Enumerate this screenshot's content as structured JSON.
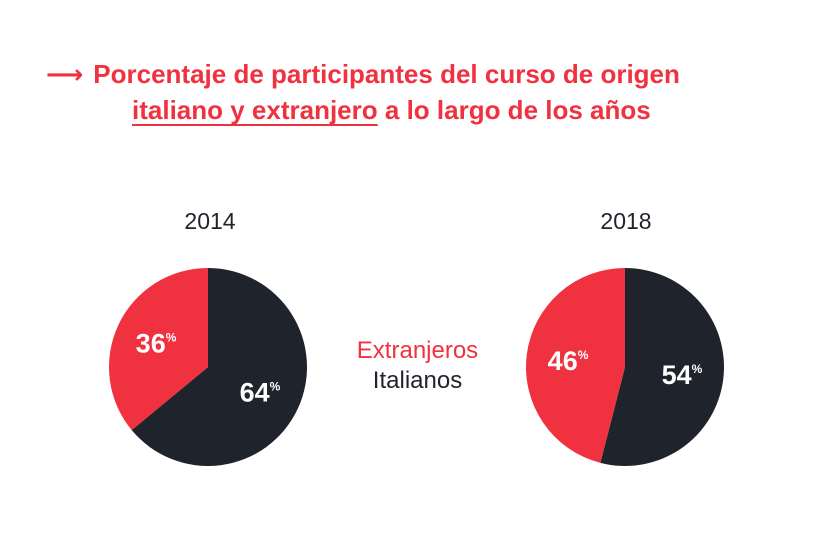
{
  "title": {
    "arrow": "⟶",
    "line1": "Porcentaje de participantes del curso de origen",
    "line2_underlined": "italiano y extranjero",
    "line2_rest": " a lo largo de los años"
  },
  "colors": {
    "extranjeros": "#f0313f",
    "italianos": "#1f232b",
    "label_text": "#ffffff"
  },
  "legend": {
    "extranjeros": "Extranjeros",
    "italianos": "Italianos"
  },
  "chart_data": [
    {
      "type": "pie",
      "title": "2014",
      "slices": [
        {
          "name": "Italianos",
          "value": 64,
          "label": "64",
          "unit": "%"
        },
        {
          "name": "Extranjeros",
          "value": 36,
          "label": "36",
          "unit": "%"
        }
      ]
    },
    {
      "type": "pie",
      "title": "2018",
      "slices": [
        {
          "name": "Italianos",
          "value": 54,
          "label": "54",
          "unit": "%"
        },
        {
          "name": "Extranjeros",
          "value": 46,
          "label": "46",
          "unit": "%"
        }
      ]
    }
  ]
}
